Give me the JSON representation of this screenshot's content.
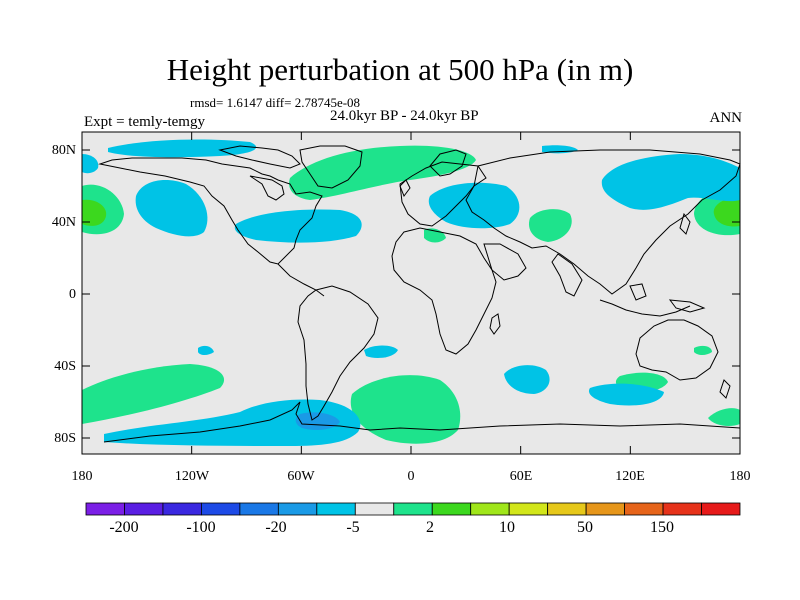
{
  "title": "Height perturbation at 500 hPa (in m)",
  "stats": "rmsd= 1.6147 diff= 2.78745e-08",
  "period": "24.0kyr BP - 24.0kyr BP",
  "experiment": "Expt = temly-temgy",
  "season": "ANN",
  "map": {
    "projection": "cylindrical equidistant",
    "background_color": "#e8e8e8",
    "lat_ticks": [
      "80N",
      "40N",
      "0",
      "40S",
      "80S"
    ],
    "lon_ticks": [
      "180",
      "120W",
      "60W",
      "0",
      "60E",
      "120E",
      "180"
    ],
    "colors": {
      "negative_small": "#00c3e6",
      "positive_small": "#1ee38c",
      "positive_medium": "#3cd81e"
    }
  },
  "colorbar": {
    "colors": [
      "#7b1fe6",
      "#5a1ee3",
      "#3a28e0",
      "#1d4ae6",
      "#1a78e6",
      "#1a9ae6",
      "#00c3e6",
      "#e8e8e8",
      "#1ee38c",
      "#3cd81e",
      "#a0e61a",
      "#d2e61a",
      "#e6c81a",
      "#e6961a",
      "#e6641a",
      "#e6321a",
      "#e61a1a"
    ],
    "labels": [
      "-200",
      "-100",
      "-20",
      "-5",
      "2",
      "10",
      "50",
      "150"
    ]
  }
}
